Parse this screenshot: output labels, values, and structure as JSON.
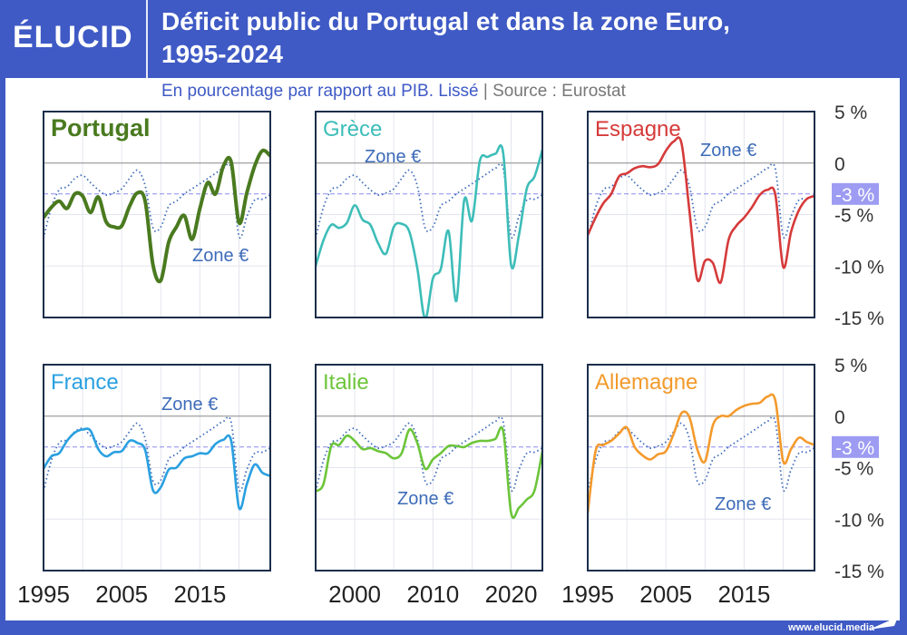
{
  "header": {
    "logo": "ÉLUCID",
    "title_line1": "Déficit public du Portugal et dans la zone Euro,",
    "title_line2": "1995-2024"
  },
  "subtitle": {
    "text": "En pourcentage par rapport au PIB. Lissé",
    "separator": "|",
    "source": "Source : Eurostat"
  },
  "footer": {
    "url": "www.elucid.media"
  },
  "colors": {
    "header": "#3f5ac5",
    "zone_euro": "#3d6bb8",
    "threshold": "#8c8cf0",
    "threshold_label_bg": "#9d9cf2"
  },
  "chart_data": {
    "type": "line",
    "x": [
      1995,
      1996,
      1997,
      1998,
      1999,
      2000,
      2001,
      2002,
      2003,
      2004,
      2005,
      2006,
      2007,
      2008,
      2009,
      2010,
      2011,
      2012,
      2013,
      2014,
      2015,
      2016,
      2017,
      2018,
      2019,
      2020,
      2021,
      2022,
      2023,
      2024
    ],
    "ylim": [
      -15,
      5
    ],
    "xlim": [
      1995,
      2024
    ],
    "y_ticks": [
      "5 %",
      "0",
      "-5 %",
      "-10 %",
      "-15 %"
    ],
    "y_tick_values": [
      5,
      0,
      -5,
      -10,
      -15
    ],
    "threshold": {
      "value": -3,
      "label": "-3 %"
    },
    "x_tick_labels_left": [
      "1995",
      "2005",
      "2015"
    ],
    "x_tick_values_left": [
      1995,
      2005,
      2015
    ],
    "x_tick_labels_middle": [
      "2000",
      "2010",
      "2020"
    ],
    "x_tick_values_middle": [
      2000,
      2010,
      2020
    ],
    "grid": true,
    "reference_series": {
      "name": "Zone €",
      "style": "dotted",
      "values": [
        -7.3,
        -4.3,
        -2.6,
        -2.3,
        -1.5,
        -1.2,
        -1.9,
        -2.6,
        -3.1,
        -2.9,
        -2.5,
        -1.5,
        -0.7,
        -2.2,
        -6.3,
        -6.2,
        -4.2,
        -3.7,
        -3.0,
        -2.5,
        -2.0,
        -1.5,
        -1.0,
        -0.5,
        -0.6,
        -7.1,
        -5.2,
        -3.6,
        -3.5,
        -3.1
      ]
    },
    "panels": [
      {
        "name": "Portugal",
        "color": "#4a7a1f",
        "bold": true,
        "values": [
          -5.3,
          -4.3,
          -3.7,
          -4.4,
          -3.0,
          -3.2,
          -4.8,
          -3.3,
          -5.7,
          -6.2,
          -6.1,
          -4.2,
          -2.9,
          -3.7,
          -9.9,
          -11.4,
          -7.7,
          -6.2,
          -5.1,
          -7.4,
          -4.4,
          -1.9,
          -3.0,
          -0.3,
          0.1,
          -5.8,
          -2.9,
          -0.3,
          1.2,
          0.7
        ]
      },
      {
        "name": "Grèce",
        "color": "#3dbdb8",
        "bold": false,
        "values": [
          -10.0,
          -7.5,
          -6.0,
          -6.3,
          -5.8,
          -4.1,
          -5.5,
          -6.0,
          -7.8,
          -8.8,
          -6.2,
          -5.9,
          -6.7,
          -10.2,
          -15.1,
          -11.2,
          -10.3,
          -6.6,
          -13.4,
          -3.6,
          -5.6,
          0.2,
          0.6,
          0.9,
          0.9,
          -9.9,
          -7.0,
          -2.5,
          -1.3,
          1.3
        ]
      },
      {
        "name": "Espagne",
        "color": "#d63a3a",
        "bold": false,
        "values": [
          -7.0,
          -5.3,
          -3.9,
          -3.0,
          -1.3,
          -1.0,
          -0.5,
          -0.3,
          -0.4,
          -0.1,
          1.2,
          2.1,
          1.9,
          -4.6,
          -11.3,
          -9.5,
          -9.7,
          -11.6,
          -7.5,
          -6.1,
          -5.3,
          -4.3,
          -3.1,
          -2.6,
          -3.1,
          -10.1,
          -6.7,
          -4.6,
          -3.5,
          -3.2
        ]
      },
      {
        "name": "France",
        "color": "#2aa0e0",
        "bold": false,
        "values": [
          -5.1,
          -3.9,
          -3.6,
          -2.4,
          -1.6,
          -1.3,
          -1.4,
          -3.2,
          -3.9,
          -3.5,
          -3.4,
          -2.4,
          -2.6,
          -3.3,
          -7.2,
          -6.9,
          -5.2,
          -5.0,
          -4.1,
          -3.9,
          -3.6,
          -3.6,
          -2.7,
          -2.3,
          -2.4,
          -8.9,
          -6.6,
          -4.7,
          -5.5,
          -5.8
        ]
      },
      {
        "name": "Italie",
        "color": "#6cc53a",
        "bold": false,
        "values": [
          -7.3,
          -6.6,
          -2.9,
          -2.8,
          -1.9,
          -2.4,
          -3.2,
          -3.1,
          -3.4,
          -3.6,
          -4.1,
          -3.6,
          -1.3,
          -2.6,
          -5.1,
          -4.2,
          -3.6,
          -2.9,
          -2.9,
          -3.0,
          -2.6,
          -2.4,
          -2.4,
          -2.2,
          -1.5,
          -9.4,
          -8.9,
          -8.1,
          -7.2,
          -3.4
        ]
      },
      {
        "name": "Allemagne",
        "color": "#f39a2c",
        "bold": false,
        "values": [
          -9.4,
          -3.4,
          -2.8,
          -2.4,
          -1.7,
          -1.1,
          -3.0,
          -3.8,
          -4.2,
          -3.7,
          -3.4,
          -1.7,
          0.3,
          -0.1,
          -3.2,
          -4.4,
          -0.9,
          0.0,
          0.0,
          0.6,
          1.0,
          1.2,
          1.3,
          1.9,
          1.5,
          -4.4,
          -3.2,
          -2.1,
          -2.5,
          -2.8
        ]
      }
    ],
    "zone_label": "Zone €"
  }
}
